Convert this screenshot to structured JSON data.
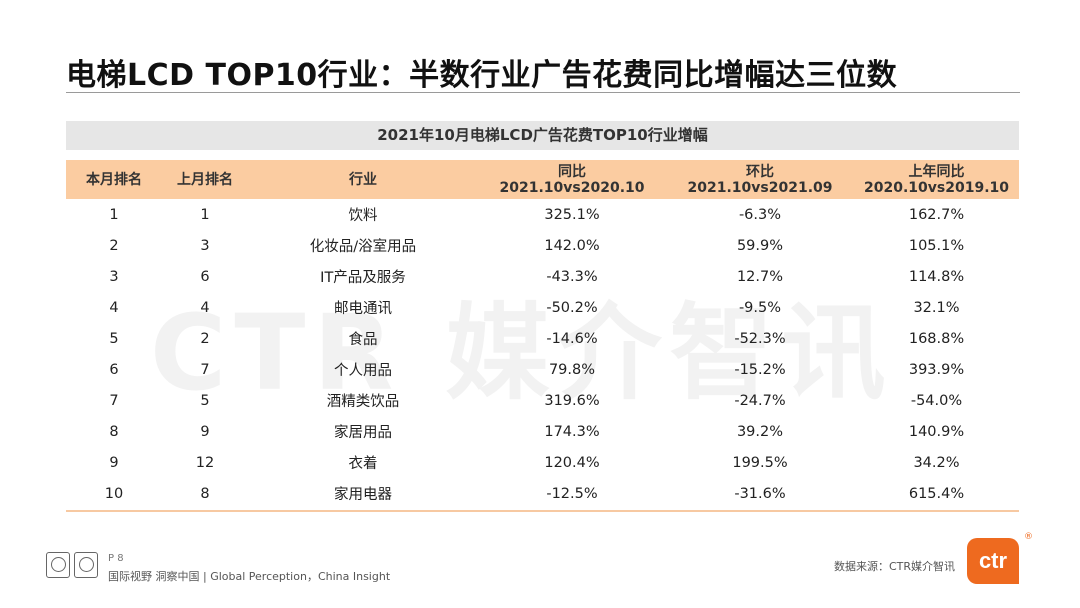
{
  "title": "电梯LCD TOP10行业：半数行业广告花费同比增幅达三位数",
  "watermark": "CTR 媒介智讯",
  "table": {
    "caption": "2021年10月电梯LCD广告花费TOP10行业增幅",
    "headers": [
      {
        "line1": "本月排名",
        "line2": ""
      },
      {
        "line1": "上月排名",
        "line2": ""
      },
      {
        "line1": "行业",
        "line2": ""
      },
      {
        "line1": "同比",
        "line2": "2021.10vs2020.10"
      },
      {
        "line1": "环比",
        "line2": "2021.10vs2021.09"
      },
      {
        "line1": "上年同比",
        "line2": "2020.10vs2019.10"
      }
    ],
    "rows": [
      [
        "1",
        "1",
        "饮料",
        "325.1%",
        "-6.3%",
        "162.7%"
      ],
      [
        "2",
        "3",
        "化妆品/浴室用品",
        "142.0%",
        "59.9%",
        "105.1%"
      ],
      [
        "3",
        "6",
        "IT产品及服务",
        "-43.3%",
        "12.7%",
        "114.8%"
      ],
      [
        "4",
        "4",
        "邮电通讯",
        "-50.2%",
        "-9.5%",
        "32.1%"
      ],
      [
        "5",
        "2",
        "食品",
        "-14.6%",
        "-52.3%",
        "168.8%"
      ],
      [
        "6",
        "7",
        "个人用品",
        "79.8%",
        "-15.2%",
        "393.9%"
      ],
      [
        "7",
        "5",
        "酒精类饮品",
        "319.6%",
        "-24.7%",
        "-54.0%"
      ],
      [
        "8",
        "9",
        "家居用品",
        "174.3%",
        "39.2%",
        "140.9%"
      ],
      [
        "9",
        "12",
        "衣着",
        "120.4%",
        "199.5%",
        "34.2%"
      ],
      [
        "10",
        "8",
        "家用电器",
        "-12.5%",
        "-31.6%",
        "615.4%"
      ]
    ]
  },
  "footer": {
    "page": "P 8",
    "tagline": "国际视野  洞察中国 | Global Perception，China Insight",
    "source": "数据来源：CTR媒介智讯",
    "logo_text": "ctr",
    "reg_mark": "®"
  },
  "colors": {
    "header_bg": "#fbcca1",
    "caption_bg": "#e6e6e6",
    "brand": "#ee6a1f"
  }
}
